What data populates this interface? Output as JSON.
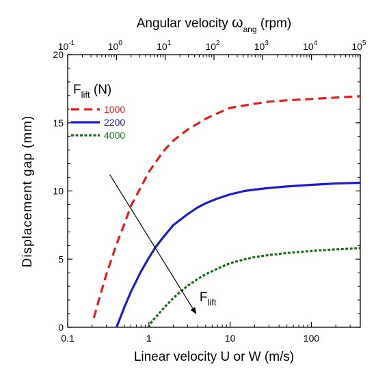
{
  "chart_data": {
    "type": "line",
    "title": "",
    "xlabel": "Linear velocity  U  or W   (m/s)",
    "xscale": "log",
    "xlim": [
      0.1,
      400
    ],
    "xticks": [
      {
        "value": 0.1,
        "label": "0.1"
      },
      {
        "value": 1,
        "label": "1"
      },
      {
        "value": 10,
        "label": "10"
      },
      {
        "value": 100,
        "label": "100"
      }
    ],
    "top_axis": {
      "label_prefix": "Angular velocity  ",
      "label_symbol": "ω",
      "label_subscript": "ang",
      "label_suffix": "  (rpm)",
      "scale": "log",
      "ticks": [
        {
          "base": "10",
          "exp": "-1",
          "rpm": 0.1
        },
        {
          "base": "10",
          "exp": "0",
          "rpm": 1
        },
        {
          "base": "10",
          "exp": "1",
          "rpm": 10
        },
        {
          "base": "10",
          "exp": "2",
          "rpm": 100
        },
        {
          "base": "10",
          "exp": "3",
          "rpm": 1000
        },
        {
          "base": "10",
          "exp": "4",
          "rpm": 10000
        },
        {
          "base": "10",
          "exp": "5",
          "rpm": 100000
        }
      ]
    },
    "ylabel": "Displacement gap (mm)",
    "ylim": [
      0,
      20
    ],
    "yticks": [
      0,
      5,
      10,
      15,
      20
    ],
    "grid": false,
    "legend": {
      "title_main": "F",
      "title_sub": "lift",
      "title_unit": " (N)",
      "placement": "top-left"
    },
    "series": [
      {
        "name": "1000",
        "color": "#e41e1e",
        "dash": "dashed",
        "x": [
          0.21,
          0.25,
          0.3,
          0.4,
          0.5,
          0.6,
          0.8,
          1,
          1.5,
          2,
          3,
          5,
          7,
          10,
          20,
          30,
          50,
          100,
          200,
          400
        ],
        "y": [
          0.7,
          2.3,
          3.9,
          6.1,
          7.6,
          8.9,
          10.3,
          11.4,
          12.9,
          13.7,
          14.5,
          15.3,
          15.7,
          16.1,
          16.4,
          16.55,
          16.65,
          16.75,
          16.85,
          16.95
        ]
      },
      {
        "name": "2200",
        "color": "#1c1ccc",
        "dash": "solid",
        "x": [
          0.4,
          0.5,
          0.6,
          0.8,
          1,
          1.2,
          1.5,
          2,
          3,
          4,
          5,
          7,
          10,
          15,
          20,
          30,
          50,
          100,
          200,
          400
        ],
        "y": [
          0,
          1.5,
          2.6,
          4.1,
          5.1,
          5.85,
          6.6,
          7.5,
          8.3,
          8.8,
          9.1,
          9.45,
          9.75,
          10.0,
          10.1,
          10.22,
          10.33,
          10.45,
          10.55,
          10.6
        ]
      },
      {
        "name": "4000",
        "color": "#1a6e1a",
        "dash": "dotted",
        "x": [
          0.98,
          1.1,
          1.3,
          1.6,
          2,
          2.5,
          3,
          4,
          5,
          7,
          10,
          15,
          20,
          30,
          50,
          100,
          200,
          400
        ],
        "y": [
          0,
          0.45,
          0.95,
          1.55,
          2.15,
          2.65,
          3.05,
          3.55,
          3.9,
          4.3,
          4.7,
          4.98,
          5.15,
          5.3,
          5.45,
          5.6,
          5.72,
          5.8
        ]
      }
    ],
    "annotations": [
      {
        "kind": "arrow",
        "text_main": "F",
        "text_sub": "lift",
        "from": {
          "x": 0.33,
          "y": 11.2
        },
        "to": {
          "x": 3.8,
          "y": 1.0
        },
        "label_at": {
          "x": 4.2,
          "y": 1.9
        }
      }
    ]
  }
}
